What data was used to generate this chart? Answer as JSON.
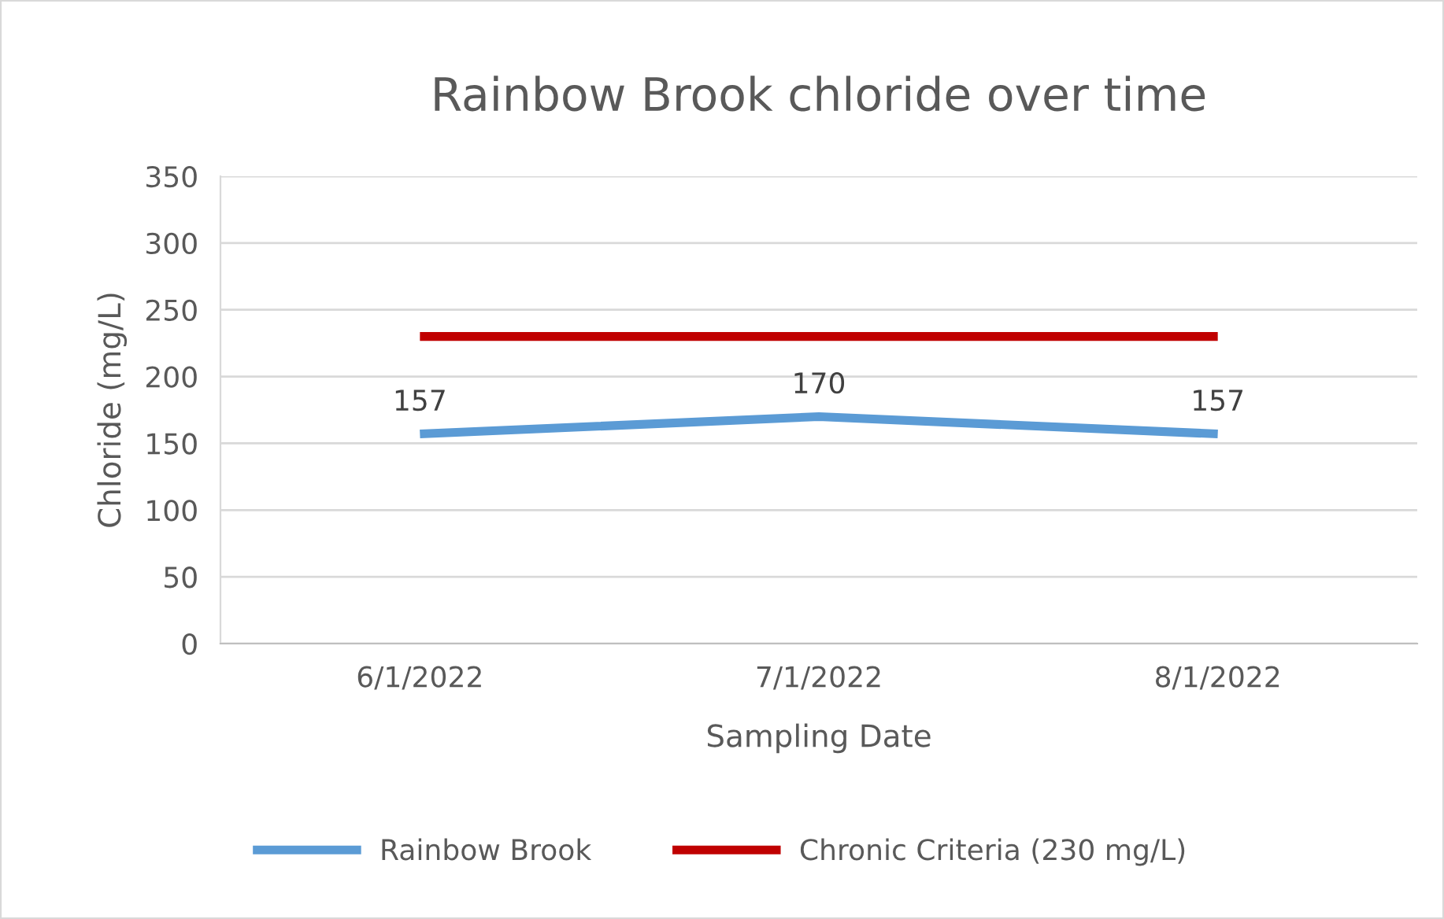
{
  "chart_data": {
    "type": "line",
    "title": "Rainbow Brook chloride over time",
    "xlabel": "Sampling Date",
    "ylabel": "Chloride (mg/L)",
    "categories": [
      "6/1/2022",
      "7/1/2022",
      "8/1/2022"
    ],
    "series": [
      {
        "name": "Rainbow Brook",
        "color": "#5b9bd5",
        "values": [
          157,
          170,
          157
        ],
        "value_labels": [
          "157",
          "170",
          "157"
        ]
      },
      {
        "name": "Chronic Criteria (230 mg/L)",
        "color": "#c00000",
        "values": [
          230,
          230,
          230
        ]
      }
    ],
    "ylim": [
      0,
      350
    ],
    "yticks": [
      0,
      50,
      100,
      150,
      200,
      250,
      300,
      350
    ],
    "grid": "y",
    "legend": "bottom",
    "marker": "none",
    "line_style": "solid"
  }
}
